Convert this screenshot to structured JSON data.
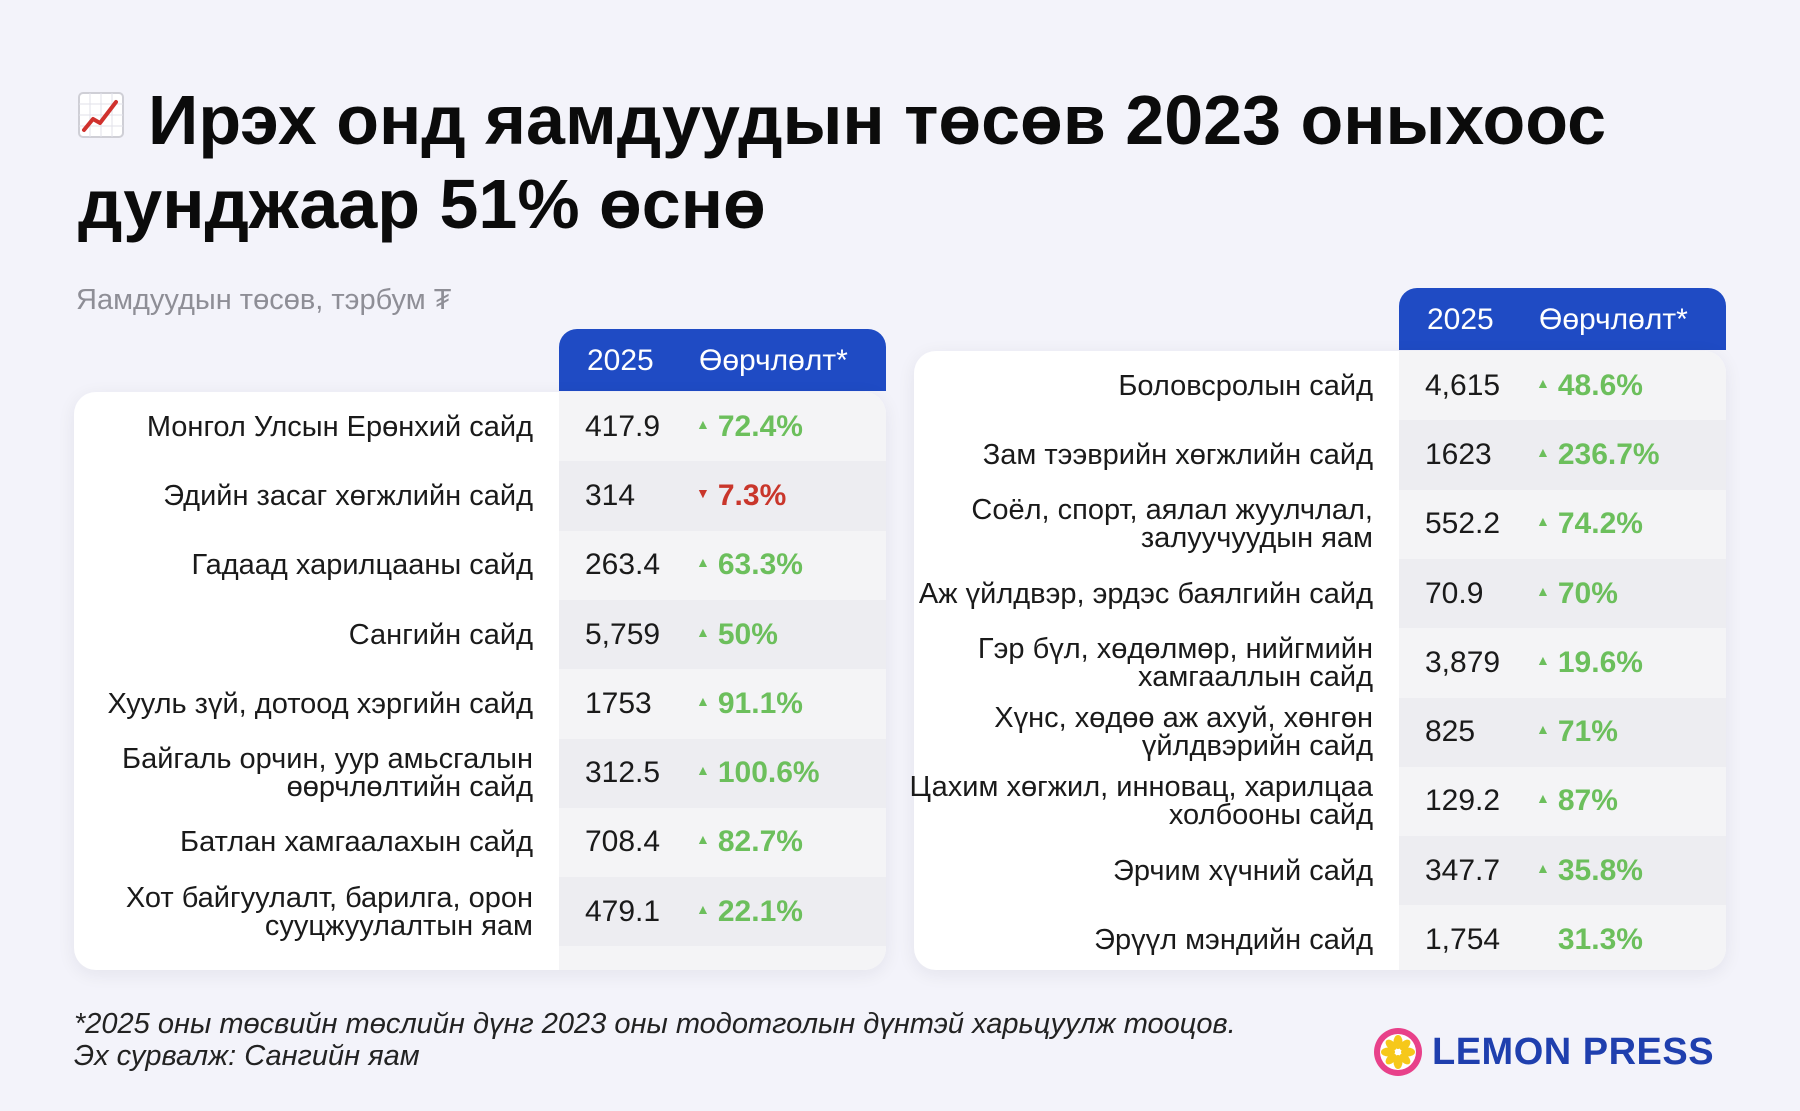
{
  "title": "Ирэх онд яамдуудын төсөв 2023 оныхоос дунджаар 51% өснө",
  "subtitle": "Яамдуудын төсөв, тэрбум ₮",
  "colors": {
    "header_blue": "#1f4bc4",
    "up_green": "#6cbf5c",
    "down_red": "#c9362b",
    "background": "#f3f3fa"
  },
  "icons": {
    "title_icon": "chart-increasing-icon",
    "logo_icon": "lemon-slice-icon"
  },
  "chart_data": {
    "type": "table",
    "columns": [
      "2025",
      "Өөрчлөлт*"
    ],
    "tables": [
      {
        "rows": [
          {
            "name": "Монгол Улсын Ерөнхий сайд",
            "value": "417.9",
            "change": "72.4%",
            "direction": "up"
          },
          {
            "name": "Эдийн засаг хөгжлийн сайд",
            "value": "314",
            "change": "7.3%",
            "direction": "down"
          },
          {
            "name": "Гадаад харилцааны сайд",
            "value": "263.4",
            "change": "63.3%",
            "direction": "up"
          },
          {
            "name": "Сангийн сайд",
            "value": "5,759",
            "change": "50%",
            "direction": "up"
          },
          {
            "name": "Хууль зүй, дотоод хэргийн сайд",
            "value": "1753",
            "change": "91.1%",
            "direction": "up"
          },
          {
            "name": "Байгаль орчин, уур амьсгалын өөрчлөлтийн сайд",
            "value": "312.5",
            "change": "100.6%",
            "direction": "up"
          },
          {
            "name": "Батлан хамгаалахын сайд",
            "value": "708.4",
            "change": "82.7%",
            "direction": "up"
          },
          {
            "name": "Хот байгуулалт, барилга, орон сууцжуулалтын яам",
            "value": "479.1",
            "change": "22.1%",
            "direction": "up"
          }
        ]
      },
      {
        "rows": [
          {
            "name": "Боловсролын сайд",
            "value": "4,615",
            "change": "48.6%",
            "direction": "up"
          },
          {
            "name": "Зам тээврийн хөгжлийн сайд",
            "value": "1623",
            "change": "236.7%",
            "direction": "up"
          },
          {
            "name": "Соёл, спорт, аялал жуулчлал, залуучуудын яам",
            "value": "552.2",
            "change": "74.2%",
            "direction": "up"
          },
          {
            "name": "Аж үйлдвэр, эрдэс баялгийн сайд",
            "value": "70.9",
            "change": "70%",
            "direction": "up"
          },
          {
            "name": "Гэр бүл, хөдөлмөр, нийгмийн хамгааллын сайд",
            "value": "3,879",
            "change": "19.6%",
            "direction": "up"
          },
          {
            "name": "Хүнс, хөдөө аж ахуй, хөнгөн үйлдвэрийн сайд",
            "value": "825",
            "change": "71%",
            "direction": "up"
          },
          {
            "name": "Цахим хөгжил, инновац, харилцаа холбооны сайд",
            "value": "129.2",
            "change": "87%",
            "direction": "up"
          },
          {
            "name": "Эрчим хүчний сайд",
            "value": "347.7",
            "change": "35.8%",
            "direction": "up"
          },
          {
            "name": "Эрүүл мэндийн сайд",
            "value": "1,754",
            "change": "31.3%",
            "direction": "none"
          }
        ]
      }
    ]
  },
  "footnote": {
    "line1": "*2025 оны төсвийн төслийн дүнг 2023 оны тодотголын дүнтэй харьцуулж тооцов.",
    "line2": "Эх сурвалж: Сангийн яам"
  },
  "logo": {
    "text": "LEMON PRESS"
  }
}
